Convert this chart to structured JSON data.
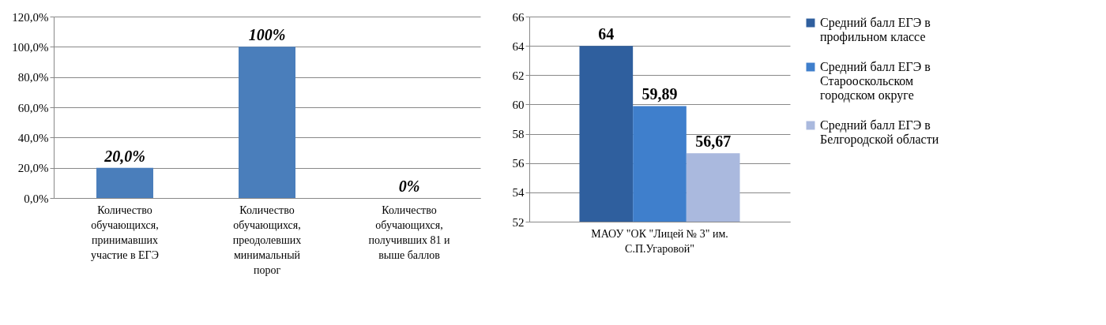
{
  "chart_data": [
    {
      "type": "bar",
      "categories": [
        "Количество обучающихся, принимавших участие в ЕГЭ",
        "Количество обучающихся, преодолевших минимальный порог",
        "Количество обучающихся, получивших 81 и выше баллов"
      ],
      "values": [
        20,
        100,
        0
      ],
      "value_labels": [
        "20,0%",
        "100%",
        "0%"
      ],
      "color": "#4a7ebb",
      "ylim": [
        0,
        120
      ],
      "yticks": [
        {
          "value": 0,
          "label": "0,0%"
        },
        {
          "value": 20,
          "label": "20,0%"
        },
        {
          "value": 40,
          "label": "40,0%"
        },
        {
          "value": 60,
          "label": "60,0%"
        },
        {
          "value": 80,
          "label": "80,0%"
        },
        {
          "value": 100,
          "label": "100,0%"
        },
        {
          "value": 120,
          "label": "120,0%"
        }
      ],
      "grid": "y",
      "legend": false
    },
    {
      "type": "bar",
      "categories": [
        "МАОУ \"ОК \"Лицей № 3\" им. С.П.Угаровой\""
      ],
      "series": [
        {
          "name": "Средний балл ЕГЭ в профильном классе",
          "color": "#2f5f9e",
          "values": [
            64
          ],
          "value_labels": [
            "64"
          ]
        },
        {
          "name": "Средний балл ЕГЭ в Старооскольском городском округе",
          "color": "#3f7fcc",
          "values": [
            59.89
          ],
          "value_labels": [
            "59,89"
          ]
        },
        {
          "name": "Средний балл ЕГЭ в Белгородской области",
          "color": "#aab9de",
          "values": [
            56.67
          ],
          "value_labels": [
            "56,67"
          ]
        }
      ],
      "ylim": [
        52,
        66
      ],
      "yticks": [
        52,
        54,
        56,
        58,
        60,
        62,
        64,
        66
      ],
      "grid": "y",
      "legend": "right"
    }
  ]
}
